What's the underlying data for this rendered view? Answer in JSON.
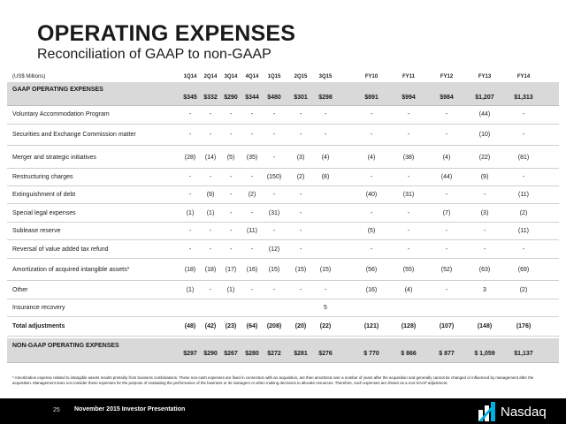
{
  "title": "OPERATING EXPENSES",
  "subtitle": "Reconciliation of GAAP to non-GAAP",
  "units": "(US$ Millions)",
  "columns": [
    "1Q14",
    "2Q14",
    "3Q14",
    "4Q14",
    "1Q15",
    "2Q15",
    "3Q15",
    "FY10",
    "FY11",
    "FY12",
    "FY13",
    "FY14"
  ],
  "rows": [
    {
      "label": "GAAP OPERATING EXPENSES",
      "style": "header",
      "values": [
        "$345",
        "$332",
        "$290",
        "$344",
        "$480",
        "$301",
        "$298",
        "$891",
        "$994",
        "$984",
        "$1,207",
        "$1,313"
      ]
    },
    {
      "label": "Voluntary Accommodation Program",
      "values": [
        "-",
        "-",
        "-",
        "-",
        "-",
        "-",
        "-",
        "-",
        "-",
        "-",
        "(44)",
        "-"
      ]
    },
    {
      "label": "Securities and Exchange Commission matter",
      "values": [
        "-",
        "-",
        "-",
        "-",
        "-",
        "-",
        "-",
        "-",
        "-",
        "-",
        "(10)",
        "-"
      ]
    },
    {
      "label": "Merger and strategic initiatives",
      "values": [
        "(28)",
        "(14)",
        "(5)",
        "(35)",
        "-",
        "(3)",
        "(4)",
        "(4)",
        "(38)",
        "(4)",
        "(22)",
        "(81)"
      ]
    },
    {
      "label": "Restructuring charges",
      "values": [
        "-",
        "-",
        "-",
        "-",
        "(150)",
        "(2)",
        "(8)",
        "-",
        "-",
        "(44)",
        "(9)",
        "-"
      ]
    },
    {
      "label": "Extinguishment of debt",
      "values": [
        "-",
        "(9)",
        "-",
        "(2)",
        "-",
        "-",
        "",
        "(40)",
        "(31)",
        "-",
        "-",
        "(11)"
      ]
    },
    {
      "label": "Special legal expenses",
      "values": [
        "(1)",
        "(1)",
        "-",
        "-",
        "(31)",
        "-",
        "",
        "-",
        "-",
        "(7)",
        "(3)",
        "(2)"
      ]
    },
    {
      "label": "Sublease reserve",
      "values": [
        "-",
        "-",
        "-",
        "(11)",
        "-",
        "-",
        "",
        "(5)",
        "-",
        "-",
        "-",
        "(11)"
      ]
    },
    {
      "label": "Reversal of value added tax refund",
      "values": [
        "-",
        "-",
        "-",
        "-",
        "(12)",
        "-",
        "",
        "-",
        "-",
        "-",
        "-",
        "-"
      ]
    },
    {
      "label": "Amortization of acquired intangible assets*",
      "values": [
        "(18)",
        "(18)",
        "(17)",
        "(16)",
        "(15)",
        "(15)",
        "(15)",
        "(56)",
        "(55)",
        "(52)",
        "(63)",
        "(69)"
      ]
    },
    {
      "label": "Other",
      "values": [
        "(1)",
        "-",
        "(1)",
        "-",
        "-",
        "-",
        "-",
        "(16)",
        "(4)",
        "-",
        "3",
        "(2)"
      ]
    },
    {
      "label": "Insurance recovery",
      "values": [
        "",
        "",
        "",
        "",
        "",
        "",
        "5",
        "",
        "",
        "",
        "",
        ""
      ]
    },
    {
      "label": "Total adjustments",
      "style": "bold",
      "values": [
        "(48)",
        "(42)",
        "(23)",
        "(64)",
        "(208)",
        "(20)",
        "(22)",
        "(121)",
        "(128)",
        "(107)",
        "(148)",
        "(176)"
      ]
    },
    {
      "label": "NON-GAAP OPERATING EXPENSES",
      "style": "header",
      "values": [
        "$297",
        "$290",
        "$267",
        "$280",
        "$272",
        "$281",
        "$276",
        "$ 770",
        "$ 866",
        "$ 877",
        "$ 1,059",
        "$1,137"
      ]
    }
  ],
  "footnote": "* Amortization expense related to intangible assets results primarily from business combinations. These non-cash expenses are fixed in connection with an acquisition, are then amortized over a number of years after the acquisition and generally cannot be changed or influenced by management after the acquisition. Management does not consider these expenses for the purpose of evaluating the performance of the business or its managers or when making decisions to allocate resources. Therefore, such expenses are shown as a non-GAAP adjustment.",
  "footer": {
    "page_number": "25",
    "presentation": "November 2015 Investor Presentation",
    "logo_text": "Nasdaq",
    "logo_icon": "nasdaq-logo-icon"
  },
  "colors": {
    "header_row_bg": "#d9d9d9",
    "footer_bg": "#000000",
    "logo_accent": "#00b0e0"
  }
}
